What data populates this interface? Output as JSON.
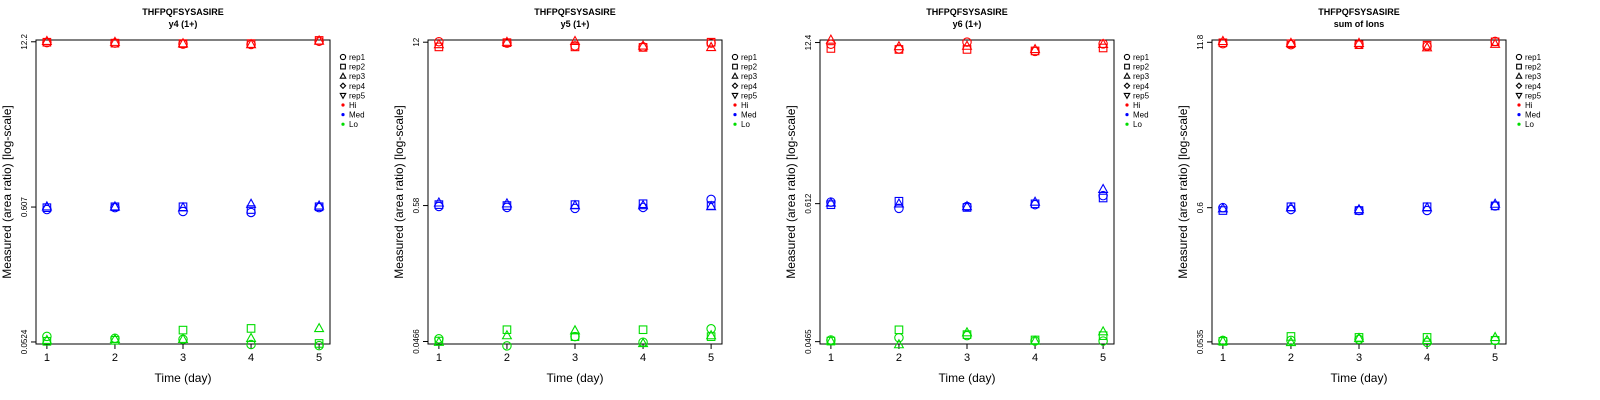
{
  "x_ticks": [
    "1",
    "2",
    "3",
    "4",
    "5"
  ],
  "xlabel": "Time (day)",
  "ylabel": "Measured (area ratio) [log-scale]",
  "legend": {
    "replicates": [
      {
        "label": "rep1",
        "shape": "circle"
      },
      {
        "label": "rep2",
        "shape": "square"
      },
      {
        "label": "rep3",
        "shape": "triangle-up"
      },
      {
        "label": "rep4",
        "shape": "diamond"
      },
      {
        "label": "rep5",
        "shape": "triangle-down"
      }
    ],
    "levels": [
      {
        "label": "Hi",
        "color": "#ff0000"
      },
      {
        "label": "Med",
        "color": "#0000ff"
      },
      {
        "label": "Lo",
        "color": "#00dd00"
      }
    ]
  },
  "chart_data": [
    {
      "type": "scatter",
      "title": "THFPQFSYSASIRE",
      "subtitle": "y4 (1+)",
      "y_ticks": [
        "0.0524",
        "0.607",
        "12.2"
      ],
      "y_scale": "log",
      "ylim": [
        0.0505,
        12.6
      ],
      "x": [
        1,
        2,
        3,
        4,
        5
      ],
      "series": [
        {
          "level": "Hi",
          "rep": "rep1",
          "values": [
            12.0,
            11.9,
            11.7,
            11.6,
            12.3
          ]
        },
        {
          "level": "Hi",
          "rep": "rep2",
          "values": [
            12.1,
            11.9,
            11.8,
            11.8,
            12.5
          ]
        },
        {
          "level": "Hi",
          "rep": "rep3",
          "values": [
            12.3,
            12.1,
            11.8,
            11.6,
            12.4
          ]
        },
        {
          "level": "Med",
          "rep": "rep1",
          "values": [
            0.58,
            0.6,
            0.56,
            0.55,
            0.6
          ]
        },
        {
          "level": "Med",
          "rep": "rep2",
          "values": [
            0.6,
            0.61,
            0.61,
            0.58,
            0.61
          ]
        },
        {
          "level": "Med",
          "rep": "rep3",
          "values": [
            0.61,
            0.61,
            0.6,
            0.64,
            0.62
          ]
        },
        {
          "level": "Lo",
          "rep": "rep1",
          "values": [
            0.058,
            0.056,
            0.055,
            0.05,
            0.049
          ]
        },
        {
          "level": "Lo",
          "rep": "rep2",
          "values": [
            0.053,
            0.054,
            0.065,
            0.067,
            0.051
          ]
        },
        {
          "level": "Lo",
          "rep": "rep3",
          "values": [
            0.054,
            0.055,
            0.055,
            0.056,
            0.067
          ]
        }
      ]
    },
    {
      "type": "scatter",
      "title": "THFPQFSYSASIRE",
      "subtitle": "y5 (1+)",
      "y_ticks": [
        "0.0466",
        "0.58",
        "12"
      ],
      "y_scale": "log",
      "ylim": [
        0.0445,
        12.5
      ],
      "x": [
        1,
        2,
        3,
        4,
        5
      ],
      "series": [
        {
          "level": "Hi",
          "rep": "rep1",
          "values": [
            12.1,
            11.8,
            11.2,
            11.0,
            11.8
          ]
        },
        {
          "level": "Hi",
          "rep": "rep2",
          "values": [
            11.0,
            11.9,
            11.0,
            10.9,
            12.0
          ]
        },
        {
          "level": "Hi",
          "rep": "rep3",
          "values": [
            11.5,
            12.0,
            12.2,
            11.2,
            10.9
          ]
        },
        {
          "level": "Med",
          "rep": "rep1",
          "values": [
            0.57,
            0.56,
            0.55,
            0.56,
            0.65
          ]
        },
        {
          "level": "Med",
          "rep": "rep2",
          "values": [
            0.59,
            0.58,
            0.59,
            0.6,
            0.58
          ]
        },
        {
          "level": "Med",
          "rep": "rep3",
          "values": [
            0.61,
            0.6,
            0.58,
            0.58,
            0.57
          ]
        },
        {
          "level": "Lo",
          "rep": "rep1",
          "values": [
            0.049,
            0.043,
            0.051,
            0.046,
            0.059
          ]
        },
        {
          "level": "Lo",
          "rep": "rep2",
          "values": [
            0.047,
            0.058,
            0.051,
            0.058,
            0.051
          ]
        },
        {
          "level": "Lo",
          "rep": "rep3",
          "values": [
            0.046,
            0.052,
            0.057,
            0.045,
            0.052
          ]
        }
      ]
    },
    {
      "type": "scatter",
      "title": "THFPQFSYSASIRE",
      "subtitle": "y6 (1+)",
      "y_ticks": [
        "0.0465",
        "0.612",
        "12.4"
      ],
      "y_scale": "log",
      "ylim": [
        0.0445,
        13.0
      ],
      "x": [
        1,
        2,
        3,
        4,
        5
      ],
      "series": [
        {
          "level": "Hi",
          "rep": "rep1",
          "values": [
            12.0,
            11.0,
            12.5,
            10.5,
            12.1
          ]
        },
        {
          "level": "Hi",
          "rep": "rep2",
          "values": [
            11.1,
            10.9,
            10.9,
            10.6,
            11.2
          ]
        },
        {
          "level": "Hi",
          "rep": "rep3",
          "values": [
            13.0,
            11.5,
            11.6,
            10.9,
            12.0
          ]
        },
        {
          "level": "Med",
          "rep": "rep1",
          "values": [
            0.63,
            0.56,
            0.58,
            0.6,
            0.71
          ]
        },
        {
          "level": "Med",
          "rep": "rep2",
          "values": [
            0.6,
            0.64,
            0.57,
            0.61,
            0.68
          ]
        },
        {
          "level": "Med",
          "rep": "rep3",
          "values": [
            0.62,
            0.61,
            0.58,
            0.63,
            0.8
          ]
        },
        {
          "level": "Lo",
          "rep": "rep1",
          "values": [
            0.048,
            0.05,
            0.052,
            0.047,
            0.047
          ]
        },
        {
          "level": "Lo",
          "rep": "rep2",
          "values": [
            0.047,
            0.058,
            0.053,
            0.048,
            0.052
          ]
        },
        {
          "level": "Lo",
          "rep": "rep3",
          "values": [
            0.047,
            0.044,
            0.055,
            0.047,
            0.056
          ]
        }
      ]
    },
    {
      "type": "scatter",
      "title": "THFPQFSYSASIRE",
      "subtitle": "sum of Ions",
      "y_ticks": [
        "0.0535",
        "0.6",
        "11.8"
      ],
      "y_scale": "log",
      "ylim": [
        0.0515,
        12.3
      ],
      "x": [
        1,
        2,
        3,
        4,
        5
      ],
      "series": [
        {
          "level": "Hi",
          "rep": "rep1",
          "values": [
            11.5,
            11.3,
            11.4,
            11.0,
            12.0
          ]
        },
        {
          "level": "Hi",
          "rep": "rep2",
          "values": [
            11.7,
            11.5,
            11.3,
            11.2,
            11.9
          ]
        },
        {
          "level": "Hi",
          "rep": "rep3",
          "values": [
            12.0,
            11.6,
            11.6,
            10.7,
            11.4
          ]
        },
        {
          "level": "Med",
          "rep": "rep1",
          "values": [
            0.6,
            0.58,
            0.57,
            0.57,
            0.62
          ]
        },
        {
          "level": "Med",
          "rep": "rep2",
          "values": [
            0.57,
            0.61,
            0.57,
            0.61,
            0.62
          ]
        },
        {
          "level": "Med",
          "rep": "rep3",
          "values": [
            0.59,
            0.6,
            0.58,
            0.6,
            0.64
          ]
        },
        {
          "level": "Lo",
          "rep": "rep1",
          "values": [
            0.055,
            0.055,
            0.056,
            0.053,
            0.055
          ]
        },
        {
          "level": "Lo",
          "rep": "rep2",
          "values": [
            0.054,
            0.059,
            0.058,
            0.058,
            0.055
          ]
        },
        {
          "level": "Lo",
          "rep": "rep3",
          "values": [
            0.054,
            0.053,
            0.057,
            0.055,
            0.058
          ]
        }
      ]
    }
  ]
}
